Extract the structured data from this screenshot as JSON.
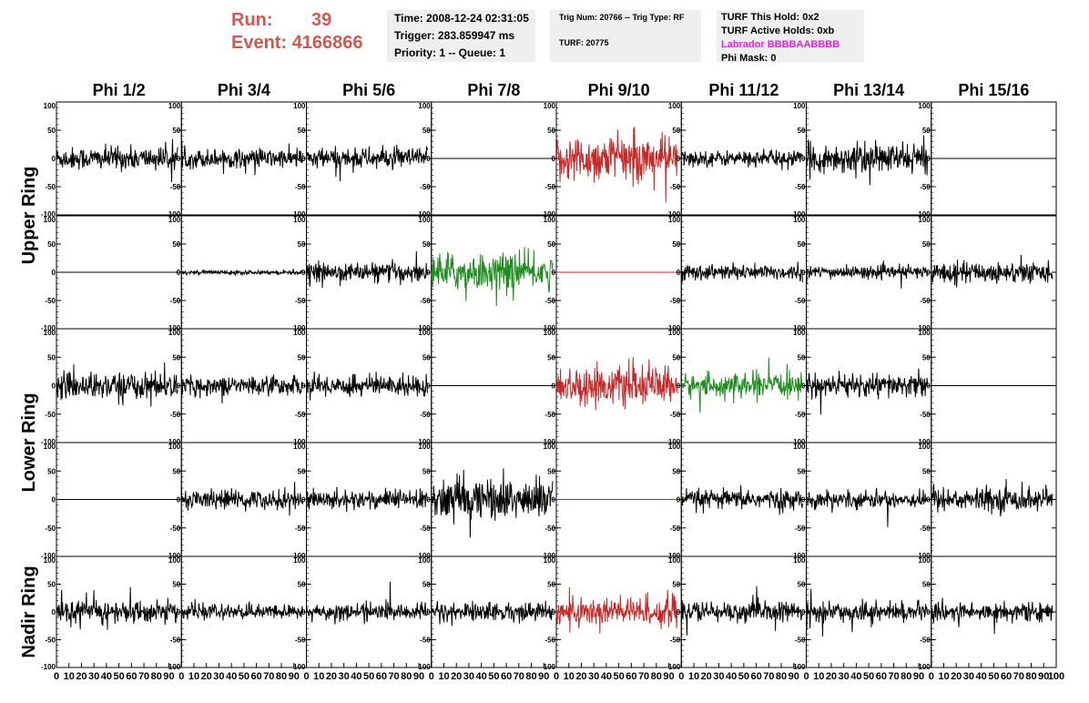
{
  "header": {
    "run_label": "Run:",
    "run_value": "39",
    "event_label": "Event:",
    "event_value": "4166866",
    "time": "Time: 2008-12-24 02:31:05",
    "trigger": "Trigger: 283.859947 ms",
    "priority": "Priority: 1 -- Queue: 1",
    "trig_num": "Trig Num: 20766 -- Trig Type: RF",
    "turf": "TURF: 20775",
    "turf_this_hold": "TURF This Hold: 0x2",
    "turf_active_holds": "TURF Active Holds: 0xb",
    "labrador": "Labrador BBBBAABBBB",
    "phi_mask": "Phi Mask: 0"
  },
  "colors": {
    "run_text": "#cd5a52",
    "labrador_text": "#e51ee5",
    "trace_normal": "#000000",
    "trace_red": "#c62828",
    "trace_green": "#1e8c1e",
    "info_bg": "#efefef"
  },
  "chart_data": {
    "type": "line",
    "grid": false,
    "phi_labels": [
      "Phi 1/2",
      "Phi 3/4",
      "Phi 5/6",
      "Phi 7/8",
      "Phi 9/10",
      "Phi 11/12",
      "Phi 13/14",
      "Phi 15/16"
    ],
    "ring_labels": [
      "Upper Ring",
      "Lower Ring",
      "Nadir Ring"
    ],
    "ring_row_spans": [
      [
        0,
        1
      ],
      [
        2,
        3
      ],
      [
        4,
        4
      ]
    ],
    "xlim": [
      0,
      100
    ],
    "ylim": [
      -100,
      100
    ],
    "yticks": [
      -100,
      -50,
      0,
      50,
      100
    ],
    "ytick_labels": [
      "-100",
      "-50",
      "0",
      "50",
      "100"
    ],
    "xticks": [
      0,
      10,
      20,
      30,
      40,
      50,
      60,
      70,
      80,
      90,
      100
    ],
    "xtick_labels": [
      "0",
      "10",
      "20",
      "30",
      "40",
      "50",
      "60",
      "70",
      "80",
      "90",
      "100"
    ],
    "panels": [
      [
        {
          "color": "black",
          "amp": 22,
          "flat": false
        },
        {
          "color": "black",
          "amp": 18,
          "flat": false
        },
        {
          "color": "black",
          "amp": 20,
          "flat": false
        },
        {
          "color": "black",
          "amp": 0,
          "flat": true
        },
        {
          "color": "red",
          "amp": 45,
          "flat": false
        },
        {
          "color": "black",
          "amp": 15,
          "flat": false
        },
        {
          "color": "black",
          "amp": 28,
          "flat": false
        },
        {
          "color": "black",
          "amp": 0,
          "flat": true
        }
      ],
      [
        {
          "color": "black",
          "amp": 0,
          "flat": true
        },
        {
          "color": "black",
          "amp": 4,
          "flat": false
        },
        {
          "color": "black",
          "amp": 18,
          "flat": false
        },
        {
          "color": "green",
          "amp": 35,
          "flat": false
        },
        {
          "color": "red",
          "amp": 0,
          "flat": true
        },
        {
          "color": "black",
          "amp": 15,
          "flat": false
        },
        {
          "color": "black",
          "amp": 12,
          "flat": false
        },
        {
          "color": "black",
          "amp": 20,
          "flat": false
        }
      ],
      [
        {
          "color": "black",
          "amp": 25,
          "flat": false
        },
        {
          "color": "black",
          "amp": 18,
          "flat": false
        },
        {
          "color": "black",
          "amp": 20,
          "flat": false
        },
        {
          "color": "black",
          "amp": 0,
          "flat": true
        },
        {
          "color": "red",
          "amp": 35,
          "flat": false
        },
        {
          "color": "green",
          "amp": 22,
          "flat": false
        },
        {
          "color": "black",
          "amp": 22,
          "flat": false
        },
        {
          "color": "black",
          "amp": 0,
          "flat": true
        }
      ],
      [
        {
          "color": "black",
          "amp": 0,
          "flat": true
        },
        {
          "color": "black",
          "amp": 18,
          "flat": false
        },
        {
          "color": "black",
          "amp": 18,
          "flat": false
        },
        {
          "color": "black",
          "amp": 40,
          "flat": false
        },
        {
          "color": "red",
          "amp": 0,
          "flat": true
        },
        {
          "color": "black",
          "amp": 18,
          "flat": false
        },
        {
          "color": "black",
          "amp": 16,
          "flat": false
        },
        {
          "color": "black",
          "amp": 22,
          "flat": false
        }
      ],
      [
        {
          "color": "black",
          "amp": 22,
          "flat": false
        },
        {
          "color": "black",
          "amp": 14,
          "flat": false
        },
        {
          "color": "black",
          "amp": 16,
          "flat": false
        },
        {
          "color": "black",
          "amp": 18,
          "flat": false
        },
        {
          "color": "red",
          "amp": 30,
          "flat": false
        },
        {
          "color": "black",
          "amp": 20,
          "flat": false
        },
        {
          "color": "black",
          "amp": 18,
          "flat": false
        },
        {
          "color": "black",
          "amp": 18,
          "flat": false
        }
      ]
    ]
  }
}
